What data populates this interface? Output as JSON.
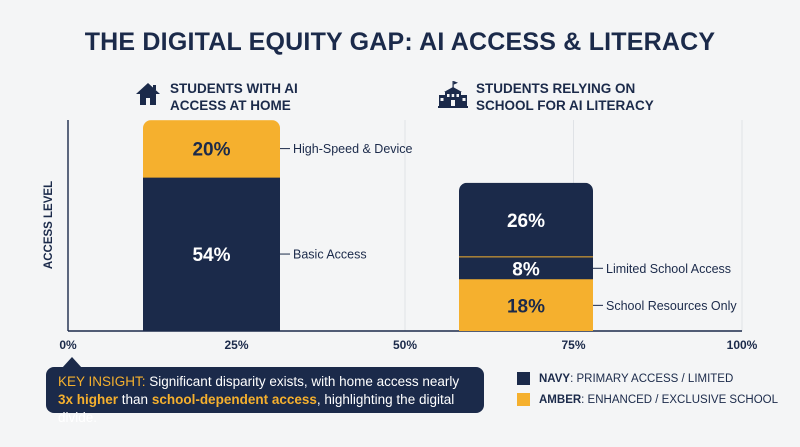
{
  "title": "THE DIGITAL EQUITY GAP: AI ACCESS & LITERACY",
  "groups": [
    {
      "label_line1": "STUDENTS WITH AI",
      "label_line2": "ACCESS AT HOME",
      "icon": "house-icon"
    },
    {
      "label_line1": "STUDENTS RELYING ON",
      "label_line2": "SCHOOL FOR AI LITERACY",
      "icon": "school-icon"
    }
  ],
  "colors": {
    "navy": "#1b2a4a",
    "amber": "#f5b02e"
  },
  "chart_data": {
    "type": "bar",
    "stacked": true,
    "ylabel": "ACCESS LEVEL",
    "x_ticks": [
      "0%",
      "25%",
      "50%",
      "75%",
      "100%"
    ],
    "xlim": [
      0,
      100
    ],
    "grid": "vertical",
    "series": [
      {
        "segments": [
          {
            "label": "Basic Access",
            "value": 54,
            "value_label": "54%",
            "color": "navy"
          },
          {
            "label": "High-Speed & Device",
            "value": 20,
            "value_label": "20%",
            "color": "amber"
          }
        ]
      },
      {
        "segments": [
          {
            "label": "School Resources Only",
            "value": 18,
            "value_label": "18%",
            "color": "amber"
          },
          {
            "label": "Limited School Access",
            "value": 8,
            "value_label": "8%",
            "color": "navy"
          },
          {
            "label": "",
            "value": 26,
            "value_label": "26%",
            "color": "navy"
          }
        ]
      }
    ]
  },
  "insight": {
    "lead": "KEY INSIGHT:",
    "text1": " Significant disparity exists, with home access nearly ",
    "em1": "3x higher",
    "text2": " than ",
    "em2": "school-dependent access",
    "text3": ", highlighting the digital divide."
  },
  "legend": [
    {
      "key": "NAVY",
      "text": ": PRIMARY ACCESS / LIMITED",
      "color": "navy"
    },
    {
      "key": "AMBER",
      "text": ": ENHANCED / EXCLUSIVE SCHOOL",
      "color": "amber"
    }
  ]
}
